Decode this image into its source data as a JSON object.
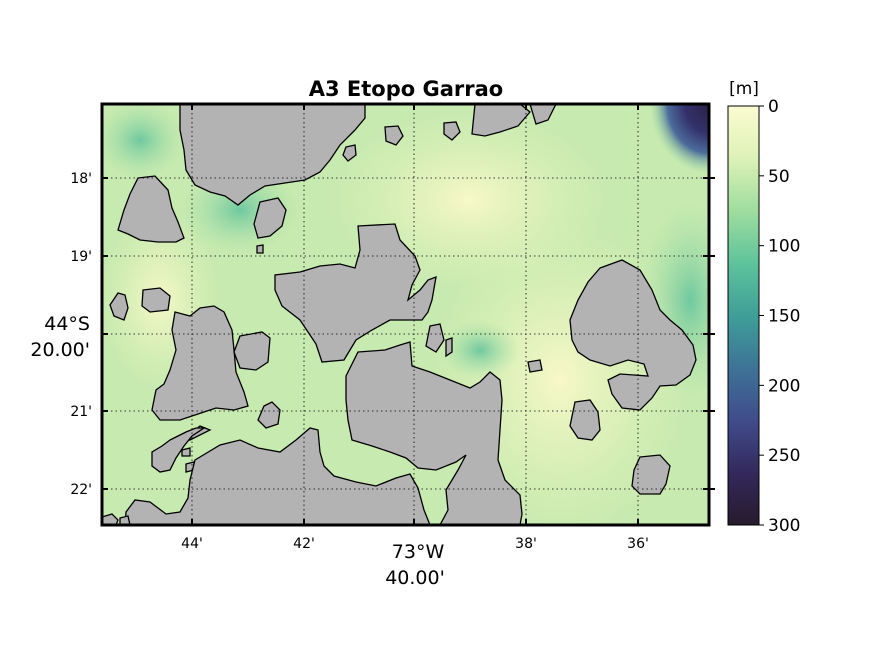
{
  "map": {
    "title": "A3 Etopo Garrao",
    "colorbar": {
      "unit_label": "[m]",
      "ticks": [
        "0",
        "50",
        "100",
        "150",
        "200",
        "250",
        "300"
      ],
      "range": [
        0,
        300
      ],
      "colors": [
        "#fbfbd2",
        "#c8eaaf",
        "#7ed29c",
        "#47ae98",
        "#3c7d99",
        "#3e4a8a",
        "#2e2040",
        "#271b2c"
      ]
    },
    "x_ticks": [
      "44'",
      "42'",
      "40'",
      "38'",
      "36'"
    ],
    "x_center_label": [
      "73°W",
      "40.00'"
    ],
    "y_ticks": [
      "18'",
      "19'",
      "20'",
      "21'",
      "22'"
    ],
    "y_center_label": [
      "44°S",
      "20.00'"
    ],
    "land_color": "#b3b3b3",
    "grid": "dotted"
  }
}
